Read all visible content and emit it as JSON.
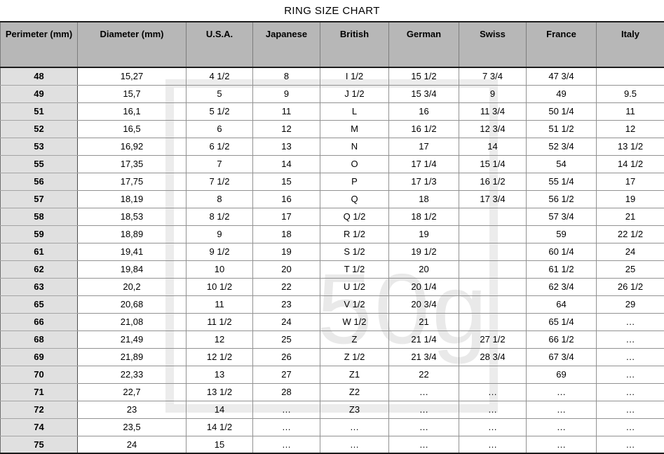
{
  "title": "RING SIZE CHART",
  "watermark": {
    "text": "50g"
  },
  "colors": {
    "header_bg": "#b7b7b7",
    "row_header_bg": "#e0e0e0",
    "grid_line": "#929292",
    "strong_line": "#1c1c1c",
    "watermark": "#ececec",
    "text": "#000000"
  },
  "chart_data": {
    "type": "table",
    "title": "RING SIZE CHART",
    "headers": [
      "Perimeter (mm)",
      "Diameter (mm)",
      "U.S.A.",
      "Japanese",
      "British",
      "German",
      "Swiss",
      "France",
      "Italy"
    ],
    "rows": [
      [
        "48",
        "15,27",
        "4 1/2",
        "8",
        "I 1/2",
        "15 1/2",
        "7 3/4",
        "47 3/4",
        ""
      ],
      [
        "49",
        "15,7",
        "5",
        "9",
        "J 1/2",
        "15 3/4",
        "9",
        "49",
        "9.5"
      ],
      [
        "51",
        "16,1",
        "5 1/2",
        "11",
        "L",
        "16",
        "11 3/4",
        "50 1/4",
        "11"
      ],
      [
        "52",
        "16,5",
        "6",
        "12",
        "M",
        "16 1/2",
        "12 3/4",
        "51 1/2",
        "12"
      ],
      [
        "53",
        "16,92",
        "6 1/2",
        "13",
        "N",
        "17",
        "14",
        "52 3/4",
        "13 1/2"
      ],
      [
        "55",
        "17,35",
        "7",
        "14",
        "O",
        "17 1/4",
        "15 1/4",
        "54",
        "14 1/2"
      ],
      [
        "56",
        "17,75",
        "7 1/2",
        "15",
        "P",
        "17 1/3",
        "16 1/2",
        "55 1/4",
        "17"
      ],
      [
        "57",
        "18,19",
        "8",
        "16",
        "Q",
        "18",
        "17 3/4",
        "56 1/2",
        "19"
      ],
      [
        "58",
        "18,53",
        "8 1/2",
        "17",
        "Q 1/2",
        "18 1/2",
        "",
        "57 3/4",
        "21"
      ],
      [
        "59",
        "18,89",
        "9",
        "18",
        "R 1/2",
        "19",
        "",
        "59",
        "22 1/2"
      ],
      [
        "61",
        "19,41",
        "9 1/2",
        "19",
        "S 1/2",
        "19 1/2",
        "",
        "60 1/4",
        "24"
      ],
      [
        "62",
        "19,84",
        "10",
        "20",
        "T 1/2",
        "20",
        "",
        "61 1/2",
        "25"
      ],
      [
        "63",
        "20,2",
        "10 1/2",
        "22",
        "U 1/2",
        "20 1/4",
        "",
        "62 3/4",
        "26 1/2"
      ],
      [
        "65",
        "20,68",
        "11",
        "23",
        "V 1/2",
        "20 3/4",
        "",
        "64",
        "29"
      ],
      [
        "66",
        "21,08",
        "11 1/2",
        "24",
        "W 1/2",
        "21",
        "",
        "65 1/4",
        "…"
      ],
      [
        "68",
        "21,49",
        "12",
        "25",
        "Z",
        "21 1/4",
        "27 1/2",
        "66 1/2",
        "…"
      ],
      [
        "69",
        "21,89",
        "12 1/2",
        "26",
        "Z 1/2",
        "21 3/4",
        "28 3/4",
        "67 3/4",
        "…"
      ],
      [
        "70",
        "22,33",
        "13",
        "27",
        "Z1",
        "22",
        "",
        "69",
        "…"
      ],
      [
        "71",
        "22,7",
        "13 1/2",
        "28",
        "Z2",
        "…",
        "…",
        "…",
        "…"
      ],
      [
        "72",
        "23",
        "14",
        "…",
        "Z3",
        "…",
        "…",
        "…",
        "…"
      ],
      [
        "74",
        "23,5",
        "14 1/2",
        "…",
        "…",
        "…",
        "…",
        "…",
        "…"
      ],
      [
        "75",
        "24",
        "15",
        "…",
        "…",
        "…",
        "…",
        "…",
        "…"
      ]
    ]
  }
}
